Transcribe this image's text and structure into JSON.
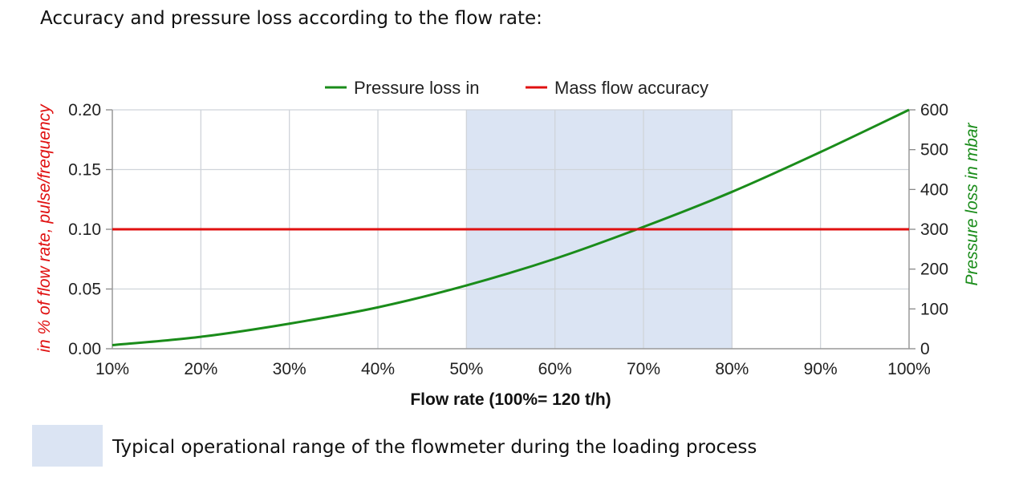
{
  "heading": "Accuracy and pressure loss according to the flow rate:",
  "footnote": {
    "text": "Typical operational range of the flowmeter during the loading process",
    "color": "#dbe4f3"
  },
  "chart_data": {
    "type": "line",
    "xlabel": "Flow rate (100%= 120 t/h)",
    "ylabel_left": "in % of flow rate, pulse/frequency",
    "ylabel_right": "Pressure loss in mbar",
    "x_ticks": [
      "10%",
      "20%",
      "30%",
      "40%",
      "50%",
      "60%",
      "70%",
      "80%",
      "90%",
      "100%"
    ],
    "xlim": [
      10,
      100
    ],
    "y_left_ticks": [
      "0.00",
      "0.05",
      "0.10",
      "0.15",
      "0.20"
    ],
    "ylim_left": [
      0,
      0.2
    ],
    "y_right_ticks": [
      "0",
      "100",
      "200",
      "300",
      "400",
      "500",
      "600"
    ],
    "ylim_right": [
      0,
      600
    ],
    "grid": true,
    "legend_position": "top",
    "highlight_range": {
      "x": [
        50,
        80
      ],
      "color": "#dbe4f3"
    },
    "series": [
      {
        "name": "Pressure loss in",
        "axis": "right",
        "color": "#1a8c1a",
        "x": [
          10,
          20,
          30,
          40,
          50,
          60,
          70,
          80,
          90,
          100
        ],
        "y": [
          9,
          30,
          63,
          104,
          159,
          226,
          306,
          394,
          494,
          600
        ]
      },
      {
        "name": "Mass flow accuracy",
        "axis": "left",
        "color": "#e01010",
        "x": [
          10,
          20,
          30,
          40,
          50,
          60,
          70,
          80,
          90,
          100
        ],
        "y": [
          0.1,
          0.1,
          0.1,
          0.1,
          0.1,
          0.1,
          0.1,
          0.1,
          0.1,
          0.1
        ]
      }
    ]
  }
}
